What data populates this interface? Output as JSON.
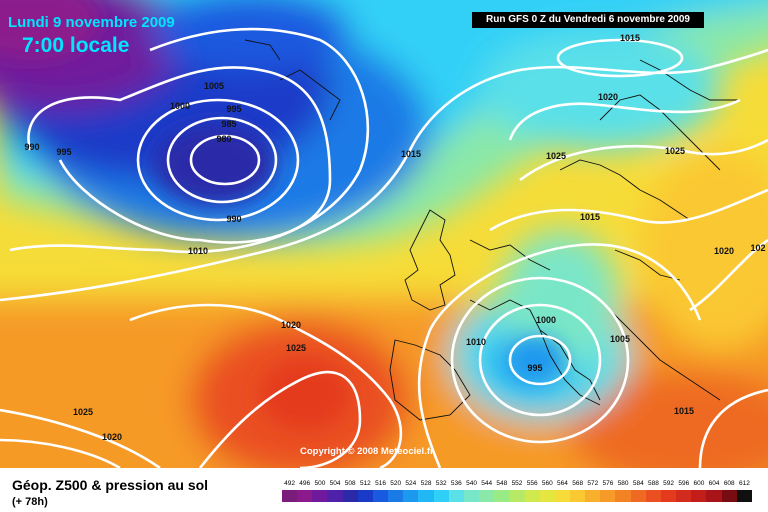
{
  "header": {
    "date_line": "Lundi 9 novembre 2009",
    "time_line": "7:00 locale",
    "run_info": "Run GFS 0 Z du Vendredi 6 novembre 2009",
    "copyright": "Copyright © 2008 Meteociel.fr"
  },
  "isobars": [
    "1015",
    "1005",
    "1000",
    "995",
    "985",
    "980",
    "990",
    "995",
    "990",
    "1010",
    "1020",
    "1025",
    "1025",
    "1015",
    "1020",
    "1025",
    "1015",
    "1020",
    "102",
    "1000",
    "1010",
    "995",
    "1005",
    "1025",
    "1020",
    "1015"
  ],
  "legend": {
    "title": "Géop. Z500 & pression au sol",
    "subtitle": "(+ 78h)",
    "scale_values": [
      "492",
      "496",
      "500",
      "504",
      "508",
      "512",
      "516",
      "520",
      "524",
      "528",
      "532",
      "536",
      "540",
      "544",
      "548",
      "552",
      "556",
      "560",
      "564",
      "568",
      "572",
      "576",
      "580",
      "584",
      "588",
      "592",
      "596",
      "600",
      "604",
      "608",
      "612"
    ],
    "scale_colors": [
      "#7a1c7a",
      "#8c1a8c",
      "#6f1a9c",
      "#4f20a8",
      "#2a2aa8",
      "#1a3ac8",
      "#1a5ae0",
      "#1a7ae6",
      "#1c98ee",
      "#20b8f4",
      "#30d0f6",
      "#5ae0e8",
      "#7ae6c8",
      "#8ae8a8",
      "#9aea86",
      "#b6ea66",
      "#d0ea4e",
      "#e6e640",
      "#f6dc38",
      "#fac830",
      "#f8b02c",
      "#f69a28",
      "#f28224",
      "#ee6a22",
      "#ea5020",
      "#e43a1e",
      "#d42c1c",
      "#c41e1a",
      "#a81418",
      "#780c10",
      "#101010"
    ]
  }
}
